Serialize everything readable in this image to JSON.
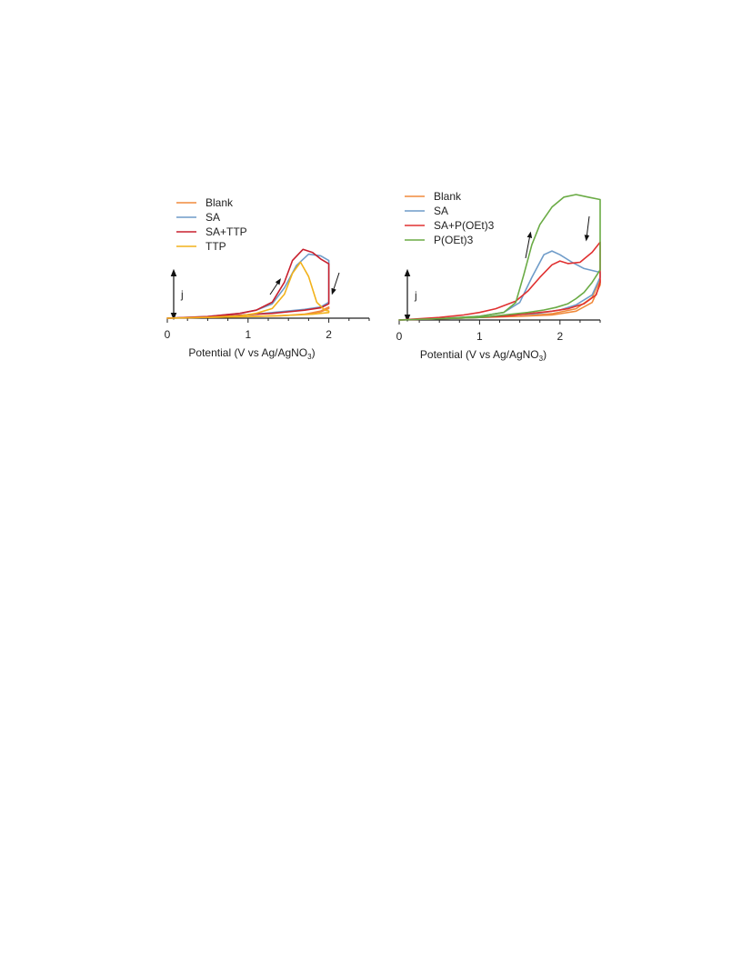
{
  "chart_data": [
    {
      "type": "line",
      "panel": "left",
      "xlabel_prefix": "Potential (V vs Ag/AgNO",
      "xlabel_sub": "3",
      "xlabel_suffix": ")",
      "ylabel": "j",
      "xlim": [
        0,
        2.5
      ],
      "ylim": [
        0,
        1.0
      ],
      "x_ticks": [
        0,
        1,
        2
      ],
      "x_tick_labels": [
        "0",
        "1",
        "2"
      ],
      "y_units": "arbitrary (normalized current density)",
      "legend_position": "top-left",
      "annotations": [
        "forward scan arrow near 1.4 V (up)",
        "reverse scan arrow near 2.1 V (down)"
      ],
      "series": [
        {
          "name": "Blank",
          "color": "#f08a3c",
          "x": [
            0.0,
            0.5,
            1.0,
            1.4,
            1.7,
            1.9,
            2.0,
            2.0,
            1.9,
            1.7,
            1.4,
            1.0,
            0.5,
            0.0
          ],
          "y": [
            0.0,
            0.01,
            0.02,
            0.03,
            0.05,
            0.09,
            0.14,
            0.12,
            0.08,
            0.05,
            0.03,
            0.02,
            0.01,
            0.0
          ]
        },
        {
          "name": "SA",
          "color": "#6f9cc9",
          "x": [
            0.0,
            0.5,
            0.9,
            1.1,
            1.3,
            1.45,
            1.6,
            1.75,
            1.9,
            2.0,
            2.0,
            1.9,
            1.7,
            1.5,
            1.3,
            1.1,
            0.8,
            0.4,
            0.0
          ],
          "y": [
            0.0,
            0.02,
            0.06,
            0.1,
            0.18,
            0.38,
            0.66,
            0.8,
            0.78,
            0.72,
            0.2,
            0.14,
            0.11,
            0.09,
            0.07,
            0.05,
            0.03,
            0.01,
            0.0
          ]
        },
        {
          "name": "SA+TTP",
          "color": "#c8202e",
          "x": [
            0.0,
            0.5,
            0.9,
            1.1,
            1.3,
            1.45,
            1.55,
            1.68,
            1.8,
            1.9,
            2.0,
            2.0,
            1.9,
            1.7,
            1.5,
            1.3,
            1.1,
            0.8,
            0.4,
            0.0
          ],
          "y": [
            0.0,
            0.02,
            0.06,
            0.1,
            0.2,
            0.45,
            0.72,
            0.86,
            0.82,
            0.74,
            0.68,
            0.18,
            0.13,
            0.1,
            0.08,
            0.06,
            0.05,
            0.03,
            0.01,
            0.0
          ]
        },
        {
          "name": "TTP",
          "color": "#f2b21b",
          "x": [
            0.0,
            0.5,
            0.9,
            1.1,
            1.3,
            1.45,
            1.55,
            1.65,
            1.75,
            1.85,
            1.95,
            2.0,
            2.0,
            1.8,
            1.6,
            1.3,
            1.0,
            0.5,
            0.0
          ],
          "y": [
            0.0,
            0.01,
            0.03,
            0.06,
            0.12,
            0.3,
            0.56,
            0.7,
            0.52,
            0.2,
            0.1,
            0.09,
            0.07,
            0.05,
            0.04,
            0.03,
            0.02,
            0.01,
            0.0
          ]
        }
      ]
    },
    {
      "type": "line",
      "panel": "right",
      "xlabel_prefix": "Potential (V vs Ag/AgNO",
      "xlabel_sub": "3",
      "xlabel_suffix": ")",
      "ylabel": "j",
      "xlim": [
        0,
        2.5
      ],
      "ylim": [
        0,
        1.0
      ],
      "x_ticks": [
        0,
        1,
        2
      ],
      "x_tick_labels": [
        "0",
        "1",
        "2"
      ],
      "y_units": "arbitrary (normalized current density)",
      "legend_position": "top-left",
      "annotations": [
        "forward scan arrow near 1.6 V (up)",
        "reverse scan arrow near 2.4 V (down)"
      ],
      "series": [
        {
          "name": "Blank",
          "color": "#f08a3c",
          "x": [
            0.0,
            0.5,
            1.0,
            1.5,
            1.9,
            2.2,
            2.4,
            2.5,
            2.5,
            2.4,
            2.2,
            1.9,
            1.5,
            1.0,
            0.5,
            0.0
          ],
          "y": [
            0.0,
            0.01,
            0.02,
            0.03,
            0.05,
            0.09,
            0.18,
            0.32,
            0.28,
            0.14,
            0.07,
            0.04,
            0.03,
            0.02,
            0.01,
            0.0
          ]
        },
        {
          "name": "SA",
          "color": "#6f9cc9",
          "x": [
            0.0,
            0.5,
            1.0,
            1.3,
            1.5,
            1.65,
            1.8,
            1.9,
            2.0,
            2.15,
            2.3,
            2.5,
            2.5,
            2.4,
            2.2,
            2.0,
            1.7,
            1.4,
            1.0,
            0.5,
            0.0
          ],
          "y": [
            0.0,
            0.01,
            0.03,
            0.06,
            0.14,
            0.34,
            0.52,
            0.55,
            0.52,
            0.46,
            0.41,
            0.38,
            0.34,
            0.2,
            0.12,
            0.08,
            0.05,
            0.04,
            0.02,
            0.01,
            0.0
          ]
        },
        {
          "name": "SA+P(OEt)3",
          "color": "#e03131",
          "x": [
            0.0,
            0.5,
            0.8,
            1.0,
            1.2,
            1.45,
            1.6,
            1.75,
            1.9,
            2.0,
            2.1,
            2.25,
            2.4,
            2.5,
            2.5,
            2.45,
            2.3,
            2.1,
            1.9,
            1.6,
            1.3,
            1.0,
            0.5,
            0.0
          ],
          "y": [
            0.0,
            0.02,
            0.04,
            0.06,
            0.09,
            0.15,
            0.23,
            0.34,
            0.44,
            0.47,
            0.45,
            0.46,
            0.54,
            0.62,
            0.3,
            0.2,
            0.13,
            0.09,
            0.07,
            0.05,
            0.03,
            0.02,
            0.01,
            0.0
          ]
        },
        {
          "name": "P(OEt)3",
          "color": "#6aab45",
          "x": [
            0.0,
            0.5,
            1.0,
            1.3,
            1.45,
            1.55,
            1.65,
            1.75,
            1.9,
            2.05,
            2.2,
            2.35,
            2.5,
            2.5,
            2.4,
            2.3,
            2.2,
            2.1,
            1.95,
            1.8,
            1.6,
            1.3,
            1.0,
            0.5,
            0.0
          ],
          "y": [
            0.0,
            0.01,
            0.03,
            0.06,
            0.14,
            0.36,
            0.6,
            0.76,
            0.9,
            0.98,
            1.0,
            0.98,
            0.96,
            0.4,
            0.3,
            0.22,
            0.17,
            0.13,
            0.1,
            0.08,
            0.06,
            0.04,
            0.02,
            0.01,
            0.0
          ]
        }
      ]
    }
  ]
}
